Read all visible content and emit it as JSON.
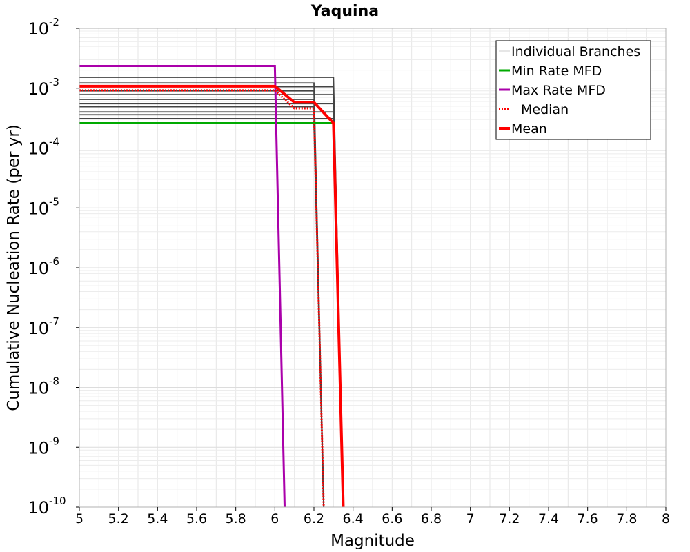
{
  "chart_data": {
    "type": "line",
    "title": "Yaquina",
    "xlabel": "Magnitude",
    "ylabel": "Cumulative Nucleation Rate (per yr)",
    "xlim": [
      5,
      8
    ],
    "ylim": [
      1e-10,
      0.01
    ],
    "yscale": "log",
    "grid": true,
    "legend_position": "top-right",
    "x_ticks": [
      "5",
      "5.2",
      "5.4",
      "5.6",
      "5.8",
      "6",
      "6.2",
      "6.4",
      "6.6",
      "6.8",
      "7",
      "7.2",
      "7.4",
      "7.6",
      "7.8",
      "8"
    ],
    "y_ticks": [
      {
        "base": "10",
        "exp": "-2",
        "value": 0.01
      },
      {
        "base": "10",
        "exp": "-3",
        "value": 0.001
      },
      {
        "base": "10",
        "exp": "-4",
        "value": 0.0001
      },
      {
        "base": "10",
        "exp": "-5",
        "value": 1e-05
      },
      {
        "base": "10",
        "exp": "-6",
        "value": 1e-06
      },
      {
        "base": "10",
        "exp": "-7",
        "value": 1e-07
      },
      {
        "base": "10",
        "exp": "-8",
        "value": 1e-08
      },
      {
        "base": "10",
        "exp": "-9",
        "value": 1e-09
      },
      {
        "base": "10",
        "exp": "-10",
        "value": 1e-10
      }
    ],
    "legend": [
      {
        "label": "Individual Branches",
        "color": "#cccccc",
        "style": "thin"
      },
      {
        "label": "Min Rate MFD",
        "color": "#00aa00",
        "style": "solid"
      },
      {
        "label": "Max Rate MFD",
        "color": "#aa00aa",
        "style": "solid"
      },
      {
        "label": "Median",
        "color": "#ff0000",
        "style": "dotted"
      },
      {
        "label": "Mean",
        "color": "#ff0000",
        "style": "thick"
      }
    ],
    "colors": {
      "branches": "#444444",
      "min": "#00aa00",
      "max": "#aa00aa",
      "median": "#ff0000",
      "mean": "#ff0000"
    },
    "branch_cutoff_magnitudes": [
      6.2,
      6.3
    ],
    "branch_rates": [
      0.00152,
      0.00122,
      0.00106,
      0.0009,
      0.00078,
      0.00065,
      0.00055,
      0.00049,
      0.0004,
      0.00036,
      0.00031,
      0.00026
    ],
    "series": [
      {
        "name": "Max Rate MFD",
        "key": "max",
        "x": [
          5,
          6.0,
          6.05
        ],
        "y": [
          0.00235,
          0.00235,
          1e-10
        ]
      },
      {
        "name": "Min Rate MFD",
        "key": "min",
        "x": [
          5,
          6.3,
          6.35
        ],
        "y": [
          0.00026,
          0.00026,
          1e-10
        ]
      },
      {
        "name": "Median",
        "key": "median",
        "x": [
          5,
          6.0,
          6.1,
          6.2,
          6.25
        ],
        "y": [
          0.00092,
          0.00092,
          0.00046,
          0.00046,
          1e-10
        ]
      },
      {
        "name": "Mean",
        "key": "mean",
        "x": [
          5,
          6.0,
          6.1,
          6.2,
          6.3,
          6.35
        ],
        "y": [
          0.00108,
          0.00108,
          0.00058,
          0.00058,
          0.00026,
          1e-10
        ]
      }
    ]
  }
}
